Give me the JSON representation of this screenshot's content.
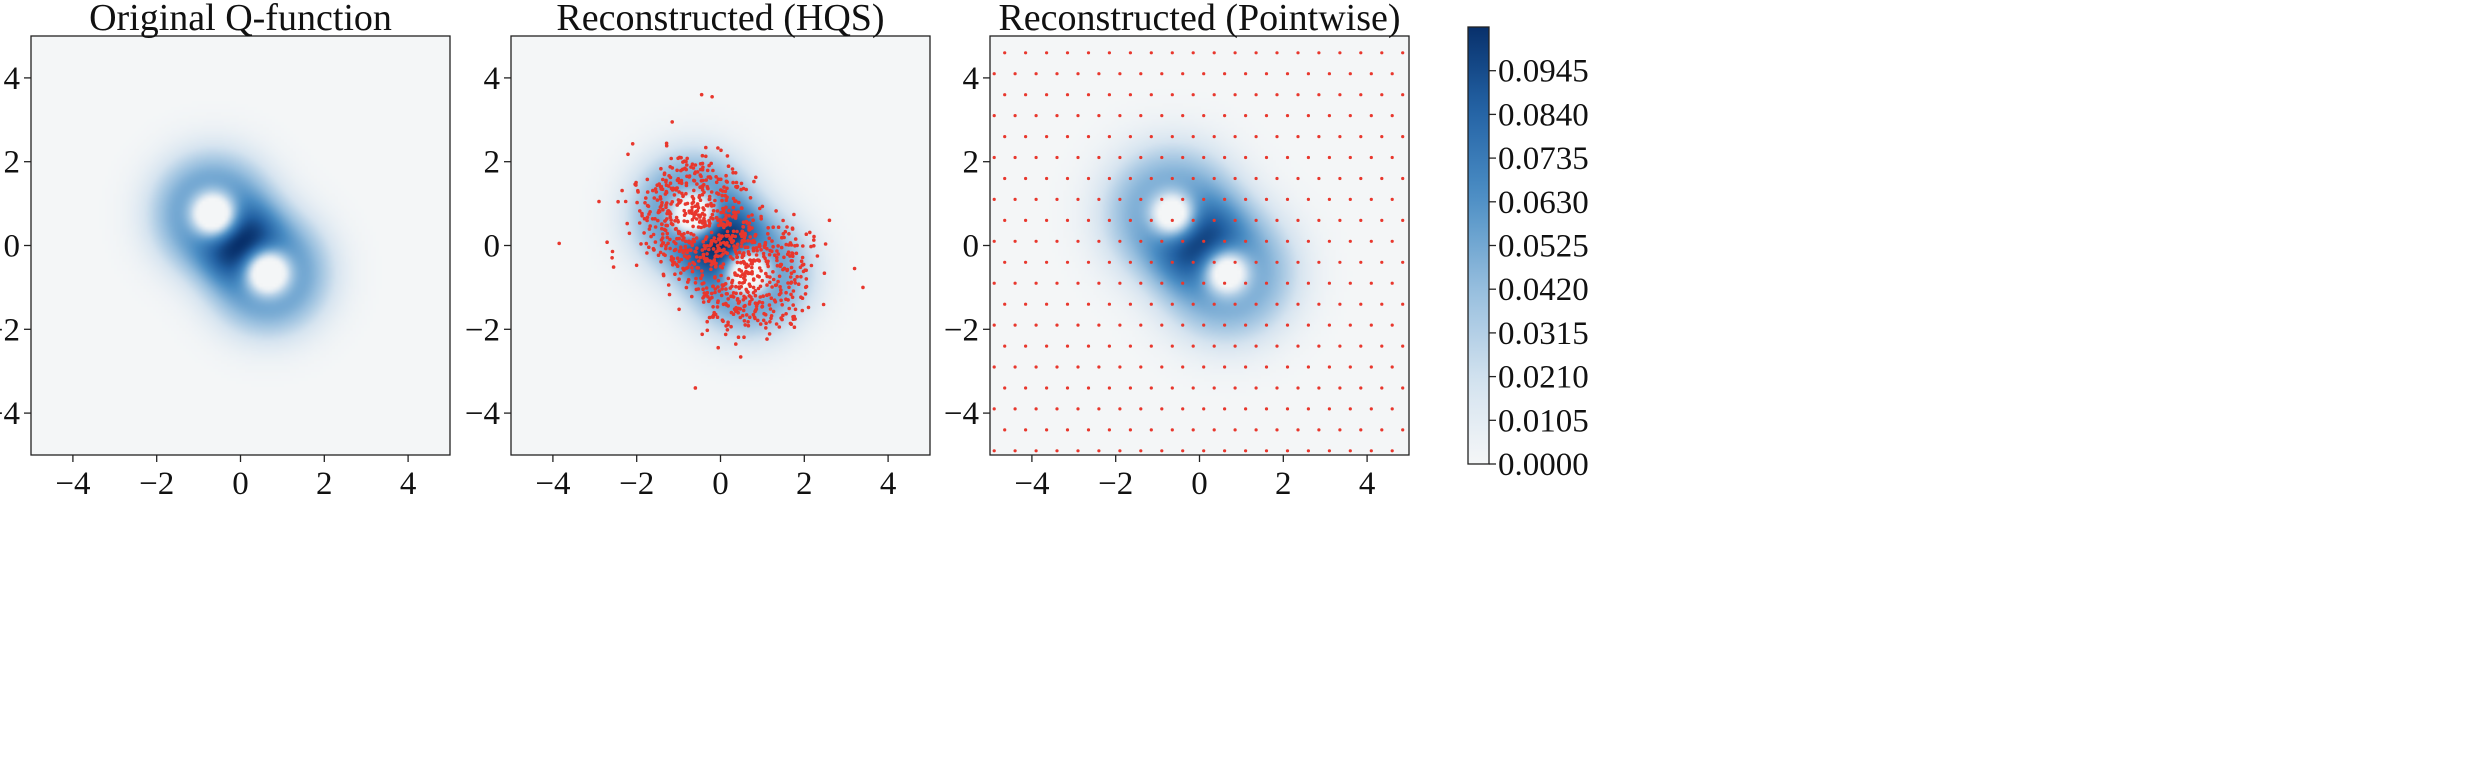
{
  "chart_data": [
    {
      "type": "heatmap",
      "title": "Original Q-function",
      "xlim": [
        -5,
        5
      ],
      "ylim": [
        -5,
        5
      ],
      "xticks": [
        -4,
        -2,
        0,
        2,
        4
      ],
      "yticks": [
        -4,
        -2,
        0,
        2,
        4
      ],
      "colormap": "Blues",
      "field": {
        "kind": "cat_state",
        "centers": [
          [
            -0.65,
            0.75
          ],
          [
            0.65,
            -0.65
          ]
        ],
        "core_sigma": 0.42,
        "hole_depth": 0.95,
        "ring_radius": 1.0,
        "ring_sigma": 0.62
      },
      "sample_points": null
    },
    {
      "type": "heatmap",
      "title": "Reconstructed (HQS)",
      "xlim": [
        -5,
        5
      ],
      "ylim": [
        -5,
        5
      ],
      "xticks": [
        -4,
        -2,
        0,
        2,
        4
      ],
      "yticks": [
        -4,
        -2,
        0,
        2,
        4
      ],
      "colormap": "Blues",
      "field": {
        "kind": "cat_state",
        "centers": [
          [
            -0.65,
            0.75
          ],
          [
            0.65,
            -0.65
          ]
        ],
        "core_sigma": 0.42,
        "hole_depth": 0.9,
        "ring_radius": 1.0,
        "ring_sigma": 0.62
      },
      "sample_points": {
        "kind": "random_samples",
        "count": 1000,
        "color": "#e8372d",
        "outliers": [
          [
            -3.85,
            0.05
          ],
          [
            -0.45,
            3.6
          ],
          [
            -0.2,
            3.55
          ],
          [
            -0.6,
            -3.4
          ],
          [
            3.4,
            -1.0
          ],
          [
            3.2,
            -0.55
          ],
          [
            -2.9,
            1.05
          ],
          [
            2.6,
            0.6
          ]
        ]
      }
    },
    {
      "type": "heatmap",
      "title": "Reconstructed (Pointwise)",
      "xlim": [
        -5,
        5
      ],
      "ylim": [
        -5,
        5
      ],
      "xticks": [
        -4,
        -2,
        0,
        2,
        4
      ],
      "yticks": [
        -4,
        -2,
        0,
        2,
        4
      ],
      "colormap": "Blues",
      "field": {
        "kind": "cat_state",
        "centers": [
          [
            -0.65,
            0.75
          ],
          [
            0.65,
            -0.65
          ]
        ],
        "core_sigma": 0.42,
        "hole_depth": 0.85,
        "ring_radius": 1.05,
        "ring_sigma": 0.7
      },
      "sample_points": {
        "kind": "grid",
        "step": 0.5,
        "color": "#e8372d"
      }
    }
  ],
  "colorbar": {
    "min": 0.0,
    "max": 0.105,
    "ticks": [
      "0.0945",
      "0.0840",
      "0.0735",
      "0.0630",
      "0.0525",
      "0.0420",
      "0.0315",
      "0.0210",
      "0.0105",
      "0.0000"
    ],
    "tick_values": [
      0.0945,
      0.084,
      0.0735,
      0.063,
      0.0525,
      0.042,
      0.0315,
      0.021,
      0.0105,
      0.0
    ]
  },
  "colors": {
    "cmap_low": "#f4f6f7",
    "cmap_mid": "#4a8dc4",
    "cmap_high": "#08306b",
    "points": "#e8372d"
  }
}
